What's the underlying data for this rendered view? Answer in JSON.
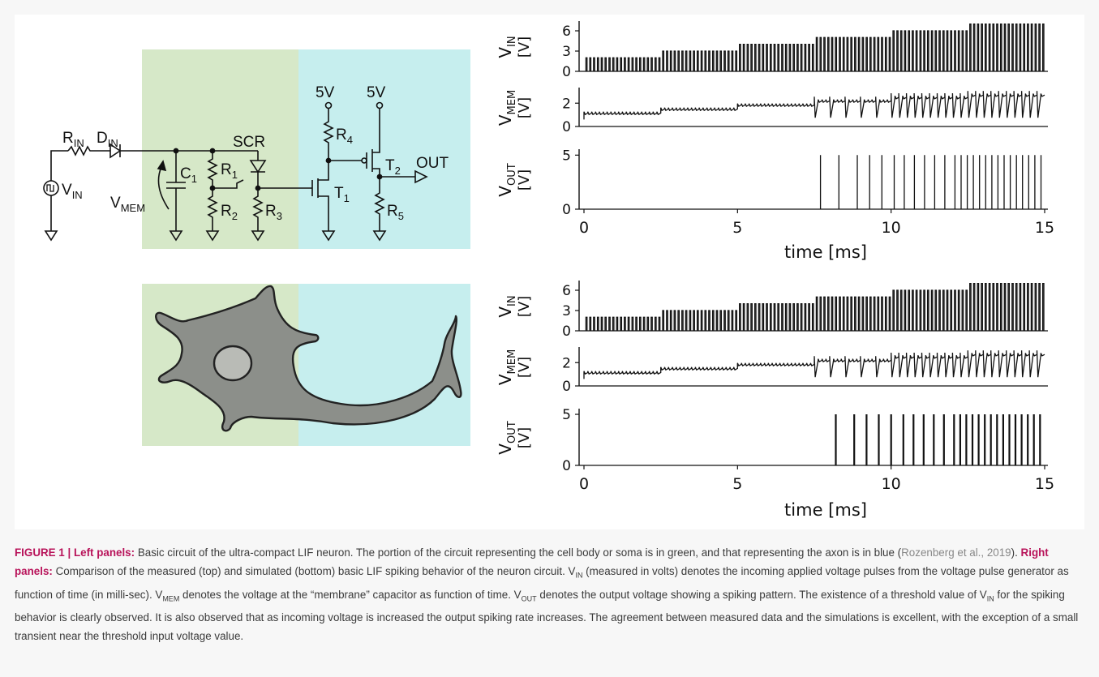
{
  "circuit": {
    "R_IN": {
      "main": "R",
      "sub": "IN"
    },
    "D_IN": {
      "main": "D",
      "sub": "IN"
    },
    "V_IN": {
      "main": "V",
      "sub": "IN"
    },
    "V_MEM": {
      "main": "V",
      "sub": "MEM"
    },
    "C1": {
      "main": "C",
      "sub": "1"
    },
    "R1": {
      "main": "R",
      "sub": "1"
    },
    "R2": {
      "main": "R",
      "sub": "2"
    },
    "R3": {
      "main": "R",
      "sub": "3"
    },
    "R4": {
      "main": "R",
      "sub": "4"
    },
    "R5": {
      "main": "R",
      "sub": "5"
    },
    "T1": {
      "main": "T",
      "sub": "1"
    },
    "T2": {
      "main": "T",
      "sub": "2"
    },
    "SCR": "SCR",
    "OUT": "OUT",
    "supply_a": "5V",
    "supply_b": "5V"
  },
  "colors": {
    "soma": "#d6e8c8",
    "axon": "#c6eeee",
    "neuron_fill": "#8c8f8a",
    "nucleus_fill": "#b9bbb6",
    "caption_highlight": "#b8135a"
  },
  "chart_data": [
    {
      "type": "line",
      "panel": "measured",
      "traces": [
        {
          "ylabel_main": "V",
          "ylabel_sub": "IN",
          "ylabel_unit": "[V]",
          "yticks": [
            "6",
            "3",
            "0"
          ],
          "ytick_values": [
            6,
            3,
            0
          ],
          "ylim": [
            0,
            7.2
          ],
          "pulse_levels": [
            {
              "from": 0,
              "to": 2.5,
              "value": 2
            },
            {
              "from": 2.5,
              "to": 5,
              "value": 3
            },
            {
              "from": 5,
              "to": 7.5,
              "value": 4
            },
            {
              "from": 7.5,
              "to": 10,
              "value": 5
            },
            {
              "from": 10,
              "to": 12.5,
              "value": 6
            },
            {
              "from": 12.5,
              "to": 15,
              "value": 7
            }
          ]
        },
        {
          "ylabel_main": "V",
          "ylabel_sub": "MEM",
          "ylabel_unit": "[V]",
          "yticks": [
            "2",
            "0"
          ],
          "ytick_values": [
            2,
            0
          ],
          "ylim": [
            0,
            3.2
          ]
        },
        {
          "ylabel_main": "V",
          "ylabel_sub": "OUT",
          "ylabel_unit": "[V]",
          "yticks": [
            "5",
            "0"
          ],
          "ytick_values": [
            5,
            0
          ],
          "ylim": [
            0,
            5.4
          ],
          "spike_onset_ms": 7.7
        }
      ],
      "xlabel": "time [ms]",
      "xticks": [
        "0",
        "5",
        "10",
        "15"
      ],
      "xtick_values": [
        0,
        5,
        10,
        15
      ],
      "xlim": [
        0,
        15
      ]
    },
    {
      "type": "line",
      "panel": "simulated",
      "traces": [
        {
          "ylabel_main": "V",
          "ylabel_sub": "IN",
          "ylabel_unit": "[V]",
          "yticks": [
            "6",
            "3",
            "0"
          ],
          "ytick_values": [
            6,
            3,
            0
          ],
          "ylim": [
            0,
            7.2
          ],
          "pulse_levels": [
            {
              "from": 0,
              "to": 2.5,
              "value": 2
            },
            {
              "from": 2.5,
              "to": 5,
              "value": 3
            },
            {
              "from": 5,
              "to": 7.5,
              "value": 4
            },
            {
              "from": 7.5,
              "to": 10,
              "value": 5
            },
            {
              "from": 10,
              "to": 12.5,
              "value": 6
            },
            {
              "from": 12.5,
              "to": 15,
              "value": 7
            }
          ]
        },
        {
          "ylabel_main": "V",
          "ylabel_sub": "MEM",
          "ylabel_unit": "[V]",
          "yticks": [
            "2",
            "0"
          ],
          "ytick_values": [
            2,
            0
          ],
          "ylim": [
            0,
            3.2
          ]
        },
        {
          "ylabel_main": "V",
          "ylabel_sub": "OUT",
          "ylabel_unit": "[V]",
          "yticks": [
            "5",
            "0"
          ],
          "ytick_values": [
            5,
            0
          ],
          "ylim": [
            0,
            5.4
          ],
          "spike_onset_ms": 8.2
        }
      ],
      "xlabel": "time [ms]",
      "xticks": [
        "0",
        "5",
        "10",
        "15"
      ],
      "xtick_values": [
        0,
        5,
        10,
        15
      ],
      "xlim": [
        0,
        15
      ]
    }
  ],
  "caption": {
    "figure_label": "FIGURE 1 | Left panels:",
    "left_text": " Basic circuit of the ultra-compact LIF neuron. The portion of the circuit representing the cell body or soma is in green, and that representing the axon is in blue (",
    "citation": "Rozenberg et al., 2019",
    "left_text_end": "). ",
    "right_label": "Right panels:",
    "right_text_1": " Comparison of the measured (top) and simulated (bottom) basic LIF spiking behavior of the neuron circuit. V",
    "sub_in_1": "IN",
    "right_text_2": " (measured in volts) denotes the incoming applied voltage pulses from the voltage pulse generator as function of time (in milli-sec). V",
    "sub_mem": "MEM",
    "right_text_3": " denotes the voltage at the “membrane” capacitor as function of time. V",
    "sub_out": "OUT",
    "right_text_4": " denotes the output voltage showing a spiking pattern. The existence of a threshold value of V",
    "sub_in_2": "IN",
    "right_text_5": " for the spiking behavior is clearly observed. It is also observed that as incoming voltage is increased the output spiking rate increases. The agreement between measured data and the simulations is excellent, with the exception of a small transient near the threshold input voltage value."
  }
}
